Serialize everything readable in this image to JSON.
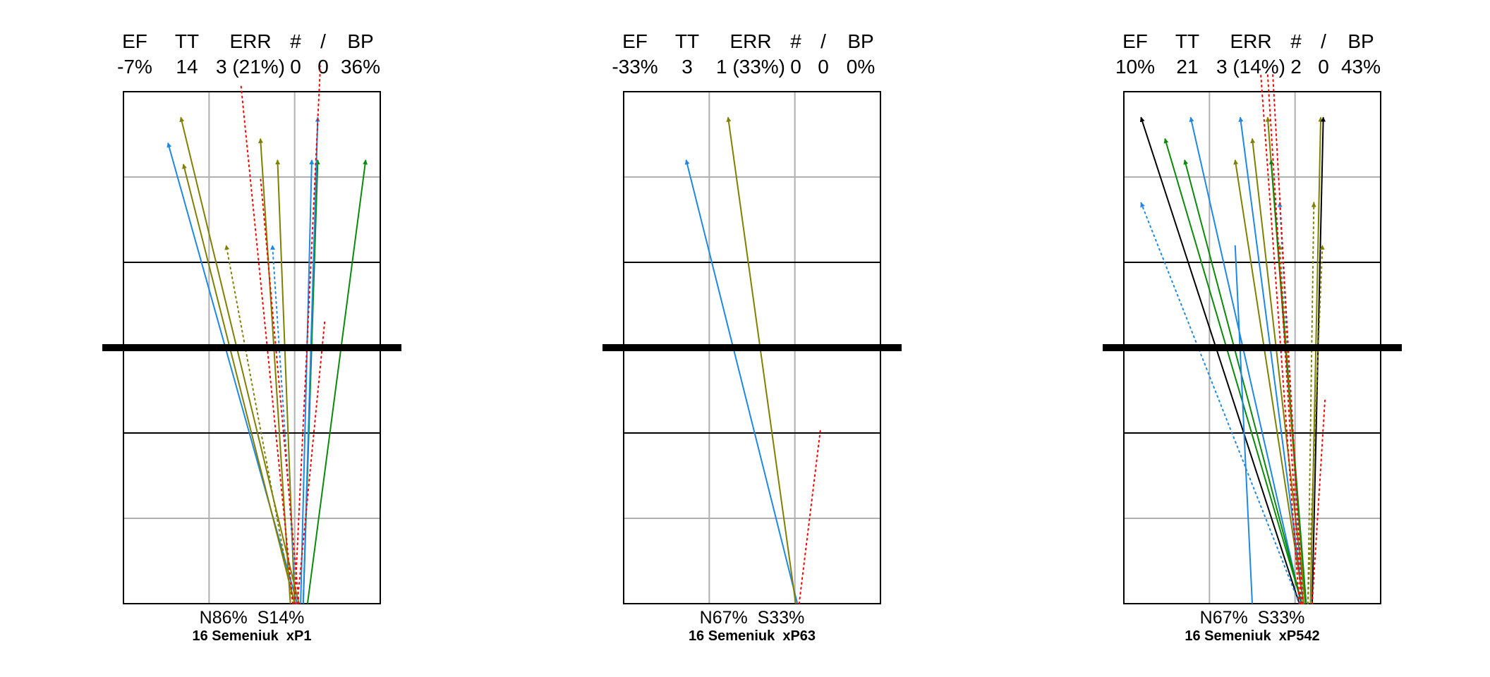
{
  "colors": {
    "blue": "#1e88e5",
    "olive": "#808000",
    "green": "#0a8a0a",
    "black": "#000000",
    "red": "#ff0000",
    "grid_light": "#b0b0b0",
    "frame": "#000000"
  },
  "chart_data": [
    {
      "type": "arrow-plot",
      "header": {
        "labels": [
          "EF",
          "TT",
          "ERR",
          "#",
          "/",
          "BP"
        ],
        "values": [
          "-7%",
          "14",
          "3 (21%)",
          "0",
          "0",
          "36%"
        ]
      },
      "footer": {
        "summary": "N86%  S14%",
        "caption": "16 Semeniuk  xP1"
      },
      "xlim": [
        0,
        3
      ],
      "ylim": [
        0,
        6
      ],
      "grid": true,
      "reference_line_y": 3,
      "arrows": [
        {
          "x0": 2.03,
          "y0": 0.0,
          "x1": 0.52,
          "y1": 5.4,
          "color": "blue",
          "style": "solid",
          "head": true
        },
        {
          "x0": 2.05,
          "y0": 0.0,
          "x1": 0.67,
          "y1": 5.7,
          "color": "olive",
          "style": "solid",
          "head": true
        },
        {
          "x0": 2.0,
          "y0": 0.0,
          "x1": 0.7,
          "y1": 5.15,
          "color": "olive",
          "style": "solid",
          "head": true
        },
        {
          "x0": 1.95,
          "y0": 0.0,
          "x1": 1.6,
          "y1": 5.45,
          "color": "olive",
          "style": "solid",
          "head": true
        },
        {
          "x0": 2.0,
          "y0": 0.0,
          "x1": 1.8,
          "y1": 5.2,
          "color": "olive",
          "style": "solid",
          "head": true
        },
        {
          "x0": 2.1,
          "y0": 0.0,
          "x1": 2.27,
          "y1": 5.2,
          "color": "green",
          "style": "solid",
          "head": true
        },
        {
          "x0": 2.15,
          "y0": 0.0,
          "x1": 2.83,
          "y1": 5.2,
          "color": "green",
          "style": "solid",
          "head": true
        },
        {
          "x0": 2.07,
          "y0": 0.0,
          "x1": 2.2,
          "y1": 5.2,
          "color": "blue",
          "style": "solid",
          "head": true
        },
        {
          "x0": 2.1,
          "y0": 0.0,
          "x1": 2.27,
          "y1": 5.7,
          "color": "blue",
          "style": "solid",
          "head": true
        },
        {
          "x0": 1.98,
          "y0": 0.0,
          "x1": 1.2,
          "y1": 4.2,
          "color": "olive",
          "style": "dotted",
          "head": true
        },
        {
          "x0": 2.02,
          "y0": 0.0,
          "x1": 1.74,
          "y1": 4.2,
          "color": "blue",
          "style": "dotted",
          "head": true
        },
        {
          "x0": 1.98,
          "y0": 0.0,
          "x1": 1.37,
          "y1": 6.1,
          "color": "red",
          "style": "dotted",
          "head": false
        },
        {
          "x0": 2.05,
          "y0": 0.0,
          "x1": 1.6,
          "y1": 5.0,
          "color": "red",
          "style": "dotted",
          "head": false
        },
        {
          "x0": 2.0,
          "y0": 0.0,
          "x1": 2.3,
          "y1": 6.3,
          "color": "red",
          "style": "dotted",
          "head": false
        },
        {
          "x0": 2.03,
          "y0": 0.0,
          "x1": 2.35,
          "y1": 3.3,
          "color": "red",
          "style": "dotted",
          "head": false
        }
      ]
    },
    {
      "type": "arrow-plot",
      "header": {
        "labels": [
          "EF",
          "TT",
          "ERR",
          "#",
          "/",
          "BP"
        ],
        "values": [
          "-33%",
          "3",
          "1 (33%)",
          "0",
          "0",
          "0%"
        ]
      },
      "footer": {
        "summary": "N67%  S33%",
        "caption": "16 Semeniuk  xP63"
      },
      "xlim": [
        0,
        3
      ],
      "ylim": [
        0,
        6
      ],
      "grid": true,
      "reference_line_y": 3,
      "arrows": [
        {
          "x0": 2.03,
          "y0": 0.0,
          "x1": 0.73,
          "y1": 5.2,
          "color": "blue",
          "style": "solid",
          "head": true
        },
        {
          "x0": 2.01,
          "y0": 0.0,
          "x1": 1.22,
          "y1": 5.7,
          "color": "olive",
          "style": "solid",
          "head": true
        },
        {
          "x0": 2.05,
          "y0": 0.0,
          "x1": 2.3,
          "y1": 2.05,
          "color": "red",
          "style": "dotted",
          "head": false
        }
      ]
    },
    {
      "type": "arrow-plot",
      "header": {
        "labels": [
          "EF",
          "TT",
          "ERR",
          "#",
          "/",
          "BP"
        ],
        "values": [
          "10%",
          "21",
          "3 (14%)",
          "2",
          "0",
          "43%"
        ]
      },
      "footer": {
        "summary": "N67%  S33%",
        "caption": "16 Semeniuk  xP542"
      },
      "xlim": [
        0,
        3
      ],
      "ylim": [
        0,
        6
      ],
      "grid": true,
      "reference_line_y": 3,
      "arrows": [
        {
          "x0": 2.05,
          "y0": 0.0,
          "x1": 0.2,
          "y1": 5.7,
          "color": "black",
          "style": "solid",
          "head": true
        },
        {
          "x0": 2.07,
          "y0": 0.0,
          "x1": 0.78,
          "y1": 5.7,
          "color": "blue",
          "style": "solid",
          "head": true
        },
        {
          "x0": 2.08,
          "y0": 0.0,
          "x1": 0.48,
          "y1": 5.45,
          "color": "green",
          "style": "solid",
          "head": true
        },
        {
          "x0": 2.08,
          "y0": 0.0,
          "x1": 0.71,
          "y1": 5.2,
          "color": "green",
          "style": "solid",
          "head": true
        },
        {
          "x0": 2.1,
          "y0": 0.0,
          "x1": 1.36,
          "y1": 5.7,
          "color": "blue",
          "style": "solid",
          "head": true
        },
        {
          "x0": 2.1,
          "y0": 0.0,
          "x1": 1.3,
          "y1": 5.2,
          "color": "olive",
          "style": "solid",
          "head": true
        },
        {
          "x0": 2.12,
          "y0": 0.0,
          "x1": 1.5,
          "y1": 5.45,
          "color": "olive",
          "style": "solid",
          "head": true
        },
        {
          "x0": 2.12,
          "y0": 0.0,
          "x1": 1.68,
          "y1": 5.7,
          "color": "olive",
          "style": "solid",
          "head": true
        },
        {
          "x0": 2.13,
          "y0": 0.0,
          "x1": 1.72,
          "y1": 5.2,
          "color": "green",
          "style": "solid",
          "head": true
        },
        {
          "x0": 2.18,
          "y0": 0.0,
          "x1": 2.3,
          "y1": 5.7,
          "color": "olive",
          "style": "solid",
          "head": true
        },
        {
          "x0": 2.2,
          "y0": 0.0,
          "x1": 2.33,
          "y1": 5.7,
          "color": "black",
          "style": "solid",
          "head": true
        },
        {
          "x0": 1.5,
          "y0": 0.0,
          "x1": 1.3,
          "y1": 4.2,
          "color": "blue",
          "style": "solid",
          "head": false
        },
        {
          "x0": 2.05,
          "y0": 0.0,
          "x1": 0.2,
          "y1": 4.7,
          "color": "blue",
          "style": "dotted",
          "head": true
        },
        {
          "x0": 2.08,
          "y0": 0.0,
          "x1": 1.82,
          "y1": 4.7,
          "color": "blue",
          "style": "dotted",
          "head": true
        },
        {
          "x0": 2.1,
          "y0": 0.0,
          "x1": 1.82,
          "y1": 4.2,
          "color": "olive",
          "style": "dotted",
          "head": true
        },
        {
          "x0": 2.15,
          "y0": 0.0,
          "x1": 2.22,
          "y1": 4.7,
          "color": "olive",
          "style": "dotted",
          "head": true
        },
        {
          "x0": 2.15,
          "y0": 0.0,
          "x1": 2.32,
          "y1": 4.2,
          "color": "olive",
          "style": "dotted",
          "head": true
        },
        {
          "x0": 2.05,
          "y0": 0.0,
          "x1": 1.6,
          "y1": 6.2,
          "color": "red",
          "style": "dotted",
          "head": false
        },
        {
          "x0": 2.07,
          "y0": 0.0,
          "x1": 1.68,
          "y1": 6.2,
          "color": "red",
          "style": "dotted",
          "head": false
        },
        {
          "x0": 2.09,
          "y0": 0.0,
          "x1": 1.74,
          "y1": 6.2,
          "color": "red",
          "style": "dotted",
          "head": false
        },
        {
          "x0": 2.2,
          "y0": 0.0,
          "x1": 2.35,
          "y1": 2.4,
          "color": "red",
          "style": "dotted",
          "head": false
        }
      ]
    }
  ]
}
